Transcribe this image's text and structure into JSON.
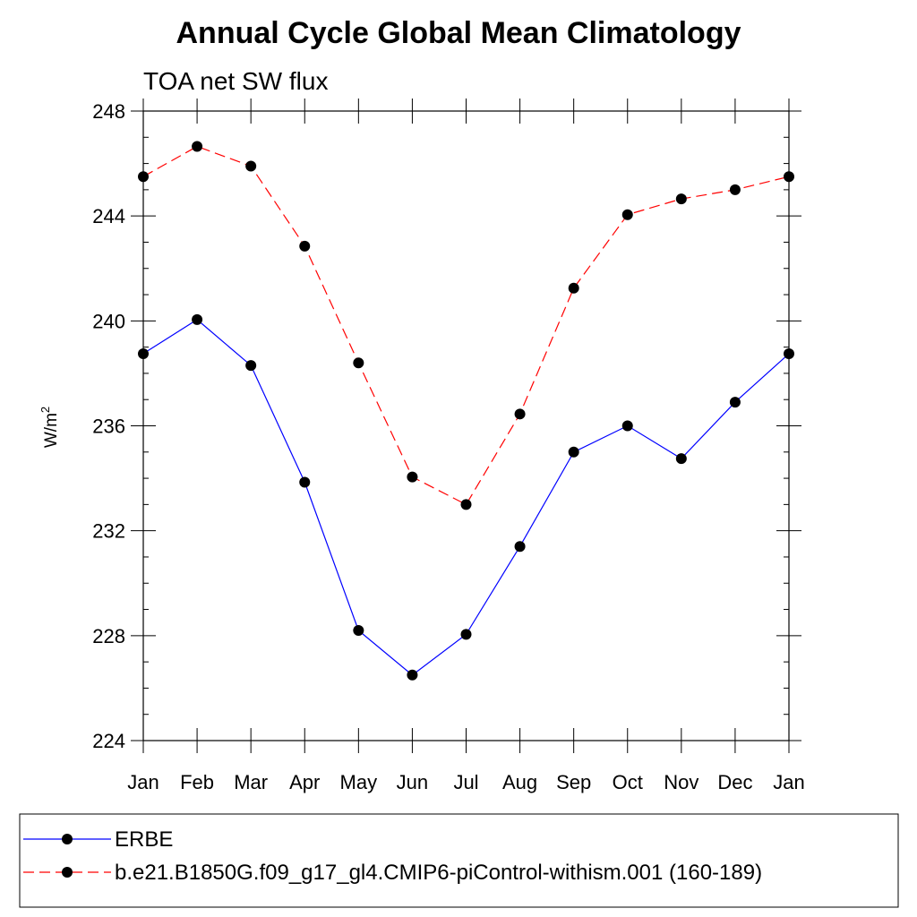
{
  "chart_data": {
    "type": "line",
    "title": "Annual Cycle Global Mean Climatology",
    "subtitle": "TOA net SW flux",
    "ylabel": {
      "base": "W/m",
      "sup": "2"
    },
    "xlabel": "",
    "categories": [
      "Jan",
      "Feb",
      "Mar",
      "Apr",
      "May",
      "Jun",
      "Jul",
      "Aug",
      "Sep",
      "Oct",
      "Nov",
      "Dec",
      "Jan"
    ],
    "ylim": [
      224,
      248
    ],
    "yticks": [
      224,
      228,
      232,
      236,
      240,
      244,
      248
    ],
    "grid": false,
    "legend_position": "bottom",
    "series": [
      {
        "name": "ERBE",
        "color": "#0000ff",
        "dash": "solid",
        "values": [
          238.75,
          240.05,
          238.3,
          233.85,
          228.2,
          226.5,
          228.05,
          231.4,
          235.0,
          236.0,
          234.75,
          236.9,
          238.75
        ]
      },
      {
        "name": "b.e21.B1850G.f09_g17_gl4.CMIP6-piControl-withism.001 (160-189)",
        "color": "#ff0000",
        "dash": "dashed",
        "values": [
          245.5,
          246.65,
          245.9,
          242.85,
          238.4,
          234.05,
          233.0,
          236.45,
          241.25,
          244.05,
          244.65,
          245.0,
          245.5
        ]
      }
    ]
  }
}
